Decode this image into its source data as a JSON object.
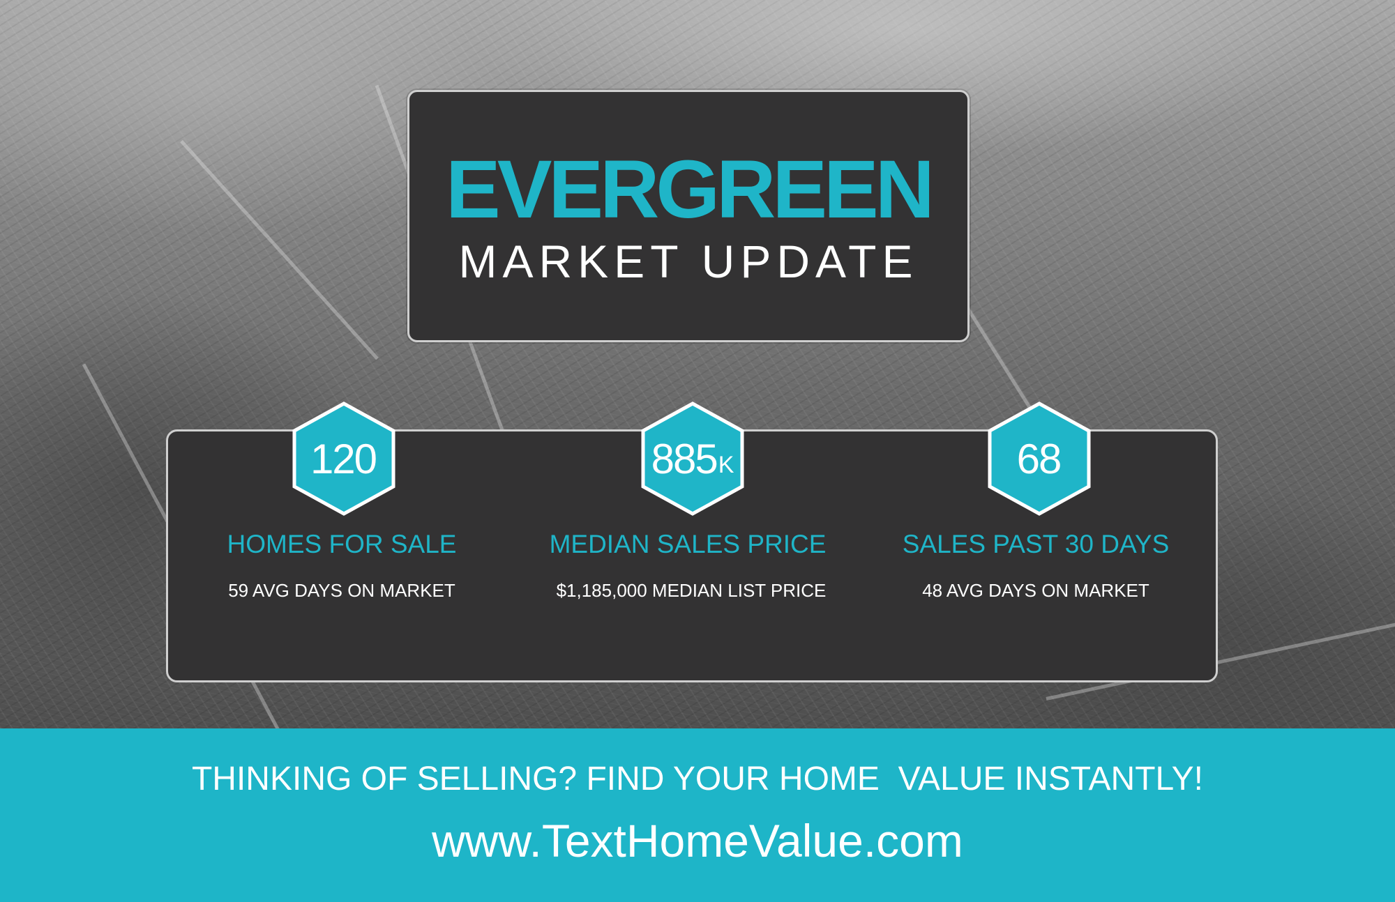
{
  "title": {
    "main": "EVERGREEN",
    "sub": "MARKET UPDATE"
  },
  "stats": [
    {
      "value": "120",
      "suffix": "",
      "label": "HOMES FOR SALE",
      "detail": "59  AVG DAYS ON MARKET"
    },
    {
      "value": "885",
      "suffix": "K",
      "label": "MEDIAN SALES PRICE",
      "detail": "$1,185,000 MEDIAN LIST PRICE"
    },
    {
      "value": "68",
      "suffix": "",
      "label": "SALES PAST 30 DAYS",
      "detail": "48  AVG DAYS ON MARKET"
    }
  ],
  "banner": {
    "headline": "THINKING OF SELLING? FIND YOUR HOME  VALUE INSTANTLY!",
    "url": "www.TextHomeValue.com"
  },
  "colors": {
    "accent": "#1fb5c8",
    "panel": "#333233",
    "panel_border": "#cfcfcf"
  },
  "icons": {
    "stat_badge": "hexagon-badge"
  }
}
